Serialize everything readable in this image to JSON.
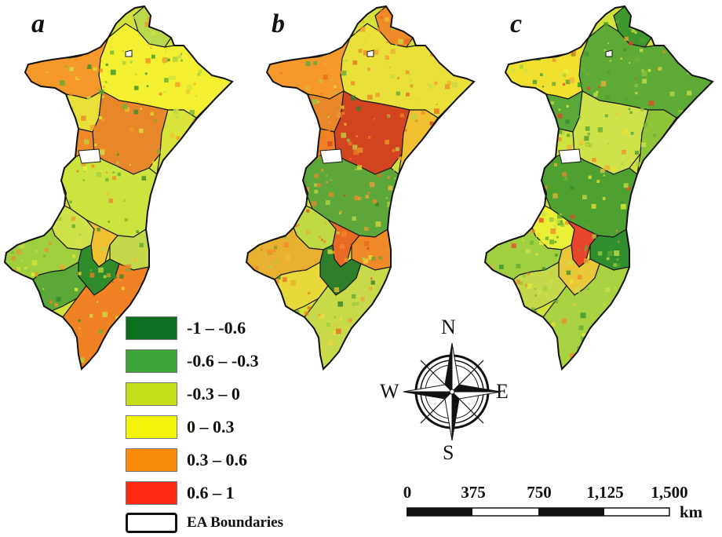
{
  "panels": [
    {
      "label": "a",
      "scheme": [
        "#b9d94a",
        "#f2f031",
        "#f59a2a",
        "#e9e13a",
        "#e8862a",
        "#d8e43a",
        "#f08a28",
        "#cde33e",
        "#cfe24a",
        "#f0c030",
        "#c4d84a",
        "#9fcf3c",
        "#2f8a2a",
        "#59a838",
        "#f08224",
        "#e89a2a",
        "#6fb236",
        "#2f8f2f",
        "#b6d83f"
      ]
    },
    {
      "label": "b",
      "scheme": [
        "#f08a28",
        "#e9e13a",
        "#f59a2a",
        "#e8862a",
        "#d24420",
        "#f0c030",
        "#f08224",
        "#5da63a",
        "#c0da45",
        "#e86a24",
        "#f08a28",
        "#e8b030",
        "#2f7f2a",
        "#e9d83a",
        "#c8d94a",
        "#f29a38",
        "#f0962e",
        "#b7d440",
        "#99cc3c"
      ]
    },
    {
      "label": "c",
      "scheme": [
        "#3f982e",
        "#5eaa36",
        "#f0e030",
        "#59a838",
        "#cfe24a",
        "#8fc43a",
        "#cde33e",
        "#4ea030",
        "#e9f035",
        "#e9452a",
        "#2f8f2f",
        "#a0cf40",
        "#e9c83a",
        "#c4d84a",
        "#a8d240",
        "#f2b038",
        "#cde04a",
        "#6fb236",
        "#f08a2a"
      ]
    }
  ],
  "legend": [
    {
      "color": "#0c6e1e",
      "label": "-1 – -0.6"
    },
    {
      "color": "#3fa43a",
      "label": "-0.6 – -0.3"
    },
    {
      "color": "#c6df1b",
      "label": "-0.3 – 0"
    },
    {
      "color": "#f4f40a",
      "label": "0 – 0.3"
    },
    {
      "color": "#fb8c0a",
      "label": "0.3 – 0.6"
    },
    {
      "color": "#fc2a12",
      "label": "0.6 – 1"
    }
  ],
  "boundary_label": "EA Boundaries",
  "compass": {
    "n": "N",
    "s": "S",
    "e": "E",
    "w": "W"
  },
  "scale": {
    "ticks": [
      "0",
      "375",
      "750",
      "1,125",
      "1,500"
    ],
    "unit": "km"
  }
}
